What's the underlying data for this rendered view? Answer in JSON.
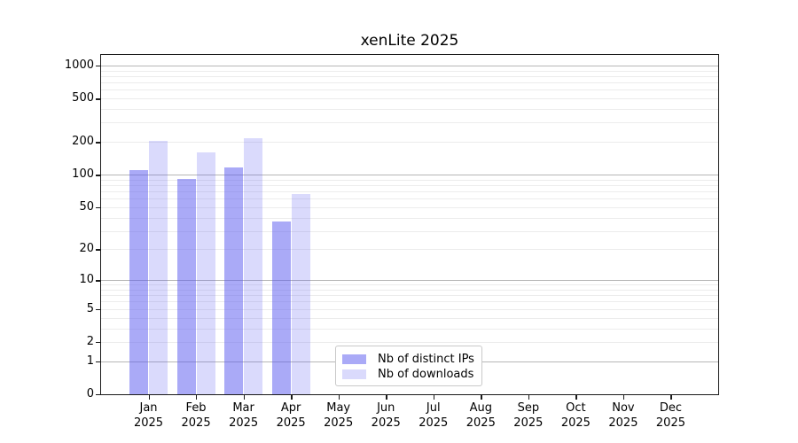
{
  "chart_data": {
    "type": "bar",
    "title": "xenLite 2025",
    "categories": [
      "Jan",
      "Feb",
      "Mar",
      "Apr",
      "May",
      "Jun",
      "Jul",
      "Aug",
      "Sep",
      "Oct",
      "Nov",
      "Dec"
    ],
    "category_year": "2025",
    "series": [
      {
        "name": "Nb of distinct IPs",
        "color": "rgba(85,85,240,0.5)",
        "values": [
          110,
          91,
          116,
          37,
          null,
          null,
          null,
          null,
          null,
          null,
          null,
          null
        ]
      },
      {
        "name": "Nb of downloads",
        "color": "rgba(85,85,240,0.22)",
        "values": [
          204,
          160,
          215,
          66,
          null,
          null,
          null,
          null,
          null,
          null,
          null,
          null
        ]
      }
    ],
    "y_ticks": [
      0,
      1,
      2,
      5,
      10,
      20,
      50,
      100,
      200,
      500,
      1000
    ],
    "y_tick_labels": [
      "0",
      "1",
      "2",
      "5",
      "10",
      "20",
      "50",
      "100",
      "200",
      "500",
      "1000"
    ],
    "y_scale": "log10(x+1)",
    "ylim": [
      0,
      1000
    ],
    "grid": "horizontal major+minor log gridlines",
    "legend_position": "bottom-center-inside"
  },
  "colors": {
    "background": "#ffffff",
    "axis": "#1a1a1a",
    "grid_major": "#b6b6b6",
    "grid_minor": "#ececec",
    "legend_border": "#c9c9c9",
    "text": "#000000"
  }
}
